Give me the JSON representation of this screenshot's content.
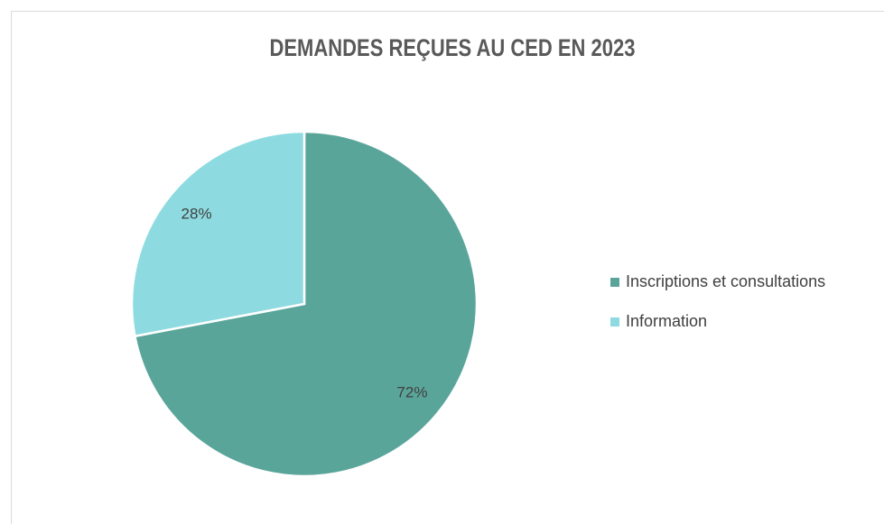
{
  "chart_data": {
    "type": "pie",
    "title": "DEMANDES REÇUES AU CED EN 2023",
    "categories": [
      "Inscriptions et consultations",
      "Information"
    ],
    "values": [
      72,
      28
    ],
    "value_labels": [
      "72%",
      "28%"
    ],
    "colors": [
      "#5aa59a",
      "#8ddbe0"
    ],
    "legend": "right"
  }
}
